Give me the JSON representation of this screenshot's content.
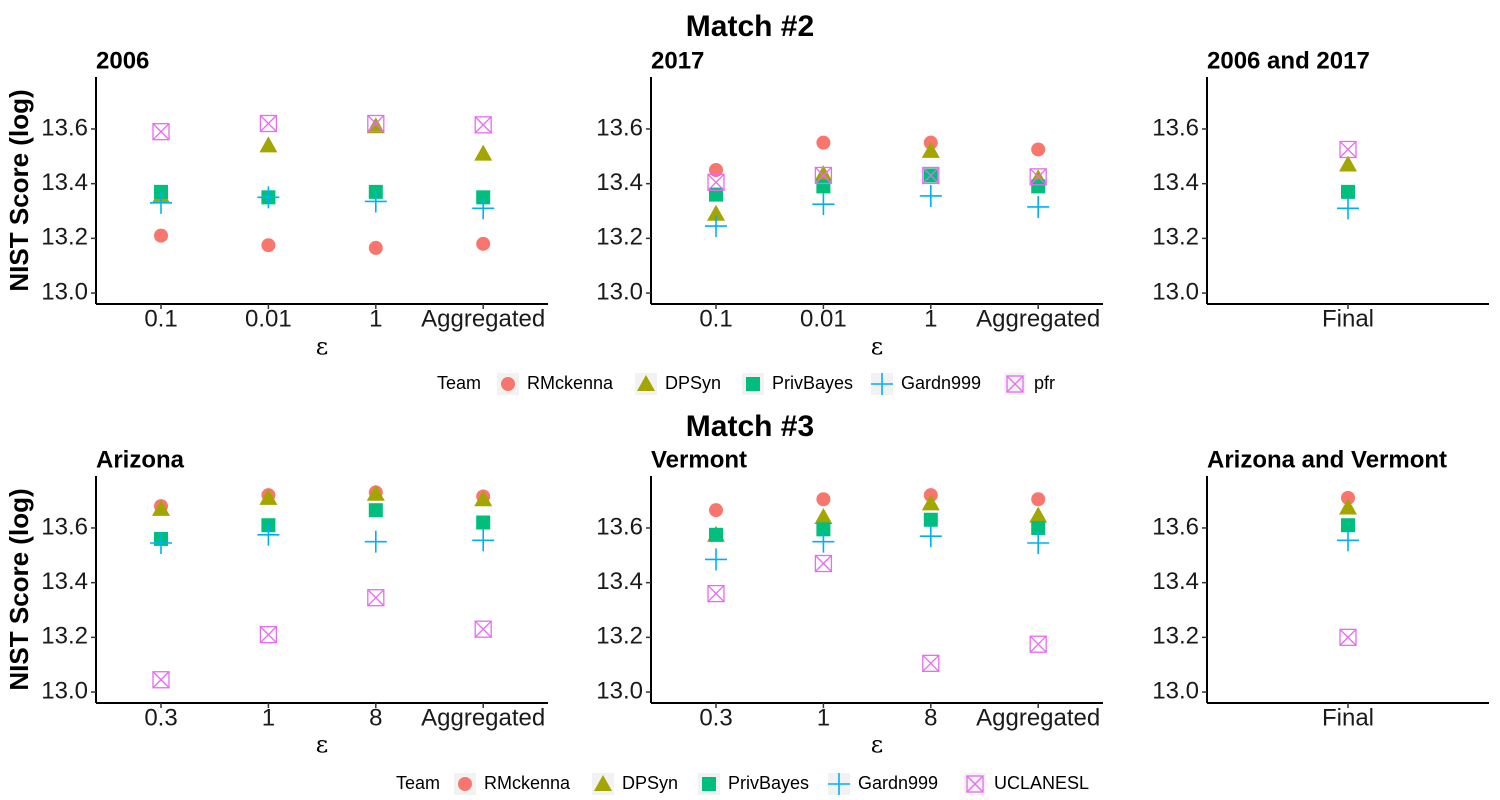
{
  "colors": {
    "RMckenna": "#F8766D",
    "DPSyn": "#A3A500",
    "PrivBayes": "#00BF7D",
    "Gardn999": "#00B0F6",
    "pfr": "#E76BF3",
    "UCLANESL": "#E76BF3"
  },
  "chart_data": [
    {
      "id": "m2",
      "match_title": "Match #2",
      "ylabel": "NIST Score (log)",
      "ylim": [
        12.96,
        13.79
      ],
      "yticks": [
        "13.0",
        "13.2",
        "13.4",
        "13.6"
      ],
      "legend": {
        "title": "Team",
        "entries": [
          {
            "name": "RMckenna",
            "shape": "circle"
          },
          {
            "name": "DPSyn",
            "shape": "triangle"
          },
          {
            "name": "PrivBayes",
            "shape": "square"
          },
          {
            "name": "Gardn999",
            "shape": "plus"
          },
          {
            "name": "pfr",
            "shape": "boxx"
          }
        ]
      },
      "panels": [
        {
          "type": "scatter",
          "title": "2006",
          "xlabel": "ε",
          "categories": [
            "0.1",
            "0.01",
            "1",
            "Aggregated"
          ],
          "series": [
            {
              "name": "RMckenna",
              "values": [
                13.21,
                13.175,
                13.165,
                13.18
              ]
            },
            {
              "name": "DPSyn",
              "values": [
                13.355,
                13.54,
                13.61,
                13.51
              ]
            },
            {
              "name": "PrivBayes",
              "values": [
                13.37,
                13.35,
                13.37,
                13.35
              ]
            },
            {
              "name": "Gardn999",
              "values": [
                13.33,
                13.35,
                13.335,
                13.31
              ]
            },
            {
              "name": "pfr",
              "values": [
                13.59,
                13.62,
                13.62,
                13.615
              ]
            }
          ]
        },
        {
          "type": "scatter",
          "title": "2017",
          "xlabel": "ε",
          "categories": [
            "0.1",
            "0.01",
            "1",
            "Aggregated"
          ],
          "series": [
            {
              "name": "RMckenna",
              "values": [
                13.45,
                13.55,
                13.55,
                13.525
              ]
            },
            {
              "name": "DPSyn",
              "values": [
                13.29,
                13.435,
                13.52,
                13.42
              ]
            },
            {
              "name": "PrivBayes",
              "values": [
                13.36,
                13.39,
                13.43,
                13.39
              ]
            },
            {
              "name": "Gardn999",
              "values": [
                13.245,
                13.325,
                13.355,
                13.315
              ]
            },
            {
              "name": "pfr",
              "values": [
                13.405,
                13.43,
                13.43,
                13.425
              ]
            }
          ]
        },
        {
          "type": "scatter",
          "title": "2006 and 2017",
          "xlabel": "",
          "categories": [
            "Final"
          ],
          "series": [
            {
              "name": "DPSyn",
              "values": [
                13.47
              ]
            },
            {
              "name": "PrivBayes",
              "values": [
                13.37
              ]
            },
            {
              "name": "Gardn999",
              "values": [
                13.31
              ]
            },
            {
              "name": "pfr",
              "values": [
                13.525
              ]
            }
          ]
        }
      ]
    },
    {
      "id": "m3",
      "match_title": "Match #3",
      "ylabel": "NIST Score (log)",
      "ylim": [
        12.96,
        13.79
      ],
      "yticks": [
        "13.0",
        "13.2",
        "13.4",
        "13.6"
      ],
      "legend": {
        "title": "Team",
        "entries": [
          {
            "name": "RMckenna",
            "shape": "circle"
          },
          {
            "name": "DPSyn",
            "shape": "triangle"
          },
          {
            "name": "PrivBayes",
            "shape": "square"
          },
          {
            "name": "Gardn999",
            "shape": "plus"
          },
          {
            "name": "UCLANESL",
            "shape": "boxx"
          }
        ]
      },
      "panels": [
        {
          "type": "scatter",
          "title": "Arizona",
          "xlabel": "ε",
          "categories": [
            "0.3",
            "1",
            "8",
            "Aggregated"
          ],
          "series": [
            {
              "name": "RMckenna",
              "values": [
                13.68,
                13.72,
                13.73,
                13.715
              ]
            },
            {
              "name": "DPSyn",
              "values": [
                13.67,
                13.71,
                13.725,
                13.705
              ]
            },
            {
              "name": "PrivBayes",
              "values": [
                13.56,
                13.61,
                13.665,
                13.62
              ]
            },
            {
              "name": "Gardn999",
              "values": [
                13.545,
                13.575,
                13.55,
                13.555
              ]
            },
            {
              "name": "UCLANESL",
              "values": [
                13.045,
                13.21,
                13.345,
                13.23
              ]
            }
          ]
        },
        {
          "type": "scatter",
          "title": "Vermont",
          "xlabel": "ε",
          "categories": [
            "0.3",
            "1",
            "8",
            "Aggregated"
          ],
          "series": [
            {
              "name": "RMckenna",
              "values": [
                13.665,
                13.705,
                13.72,
                13.705
              ]
            },
            {
              "name": "DPSyn",
              "values": [
                13.575,
                13.64,
                13.69,
                13.645
              ]
            },
            {
              "name": "PrivBayes",
              "values": [
                13.575,
                13.595,
                13.63,
                13.6
              ]
            },
            {
              "name": "Gardn999",
              "values": [
                13.485,
                13.55,
                13.57,
                13.545
              ]
            },
            {
              "name": "UCLANESL",
              "values": [
                13.36,
                13.47,
                13.105,
                13.175
              ]
            }
          ]
        },
        {
          "type": "scatter",
          "title": "Arizona and Vermont",
          "xlabel": "",
          "categories": [
            "Final"
          ],
          "series": [
            {
              "name": "RMckenna",
              "values": [
                13.71
              ]
            },
            {
              "name": "DPSyn",
              "values": [
                13.675
              ]
            },
            {
              "name": "PrivBayes",
              "values": [
                13.61
              ]
            },
            {
              "name": "Gardn999",
              "values": [
                13.555
              ]
            },
            {
              "name": "UCLANESL",
              "values": [
                13.2
              ]
            }
          ]
        }
      ]
    }
  ]
}
